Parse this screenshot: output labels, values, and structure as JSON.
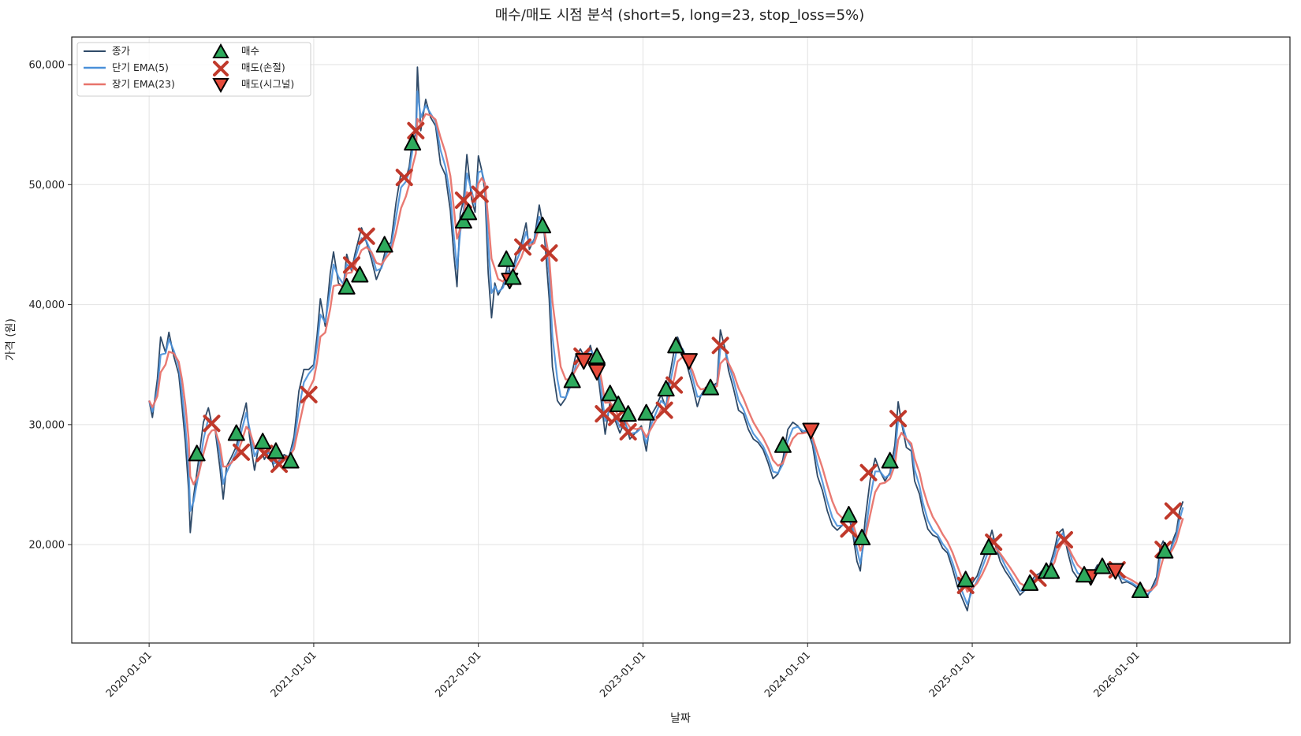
{
  "chart_data": {
    "type": "line",
    "title": "매수/매도 시점 분석 (short=5, long=23, stop_loss=5%)",
    "xlabel": "날짜",
    "ylabel": "가격 (원)",
    "ylim": [
      11800,
      62300
    ],
    "xlim": [
      2019.53,
      2026.93
    ],
    "yticks": [
      20000,
      30000,
      40000,
      50000,
      60000
    ],
    "ytick_labels": [
      "20,000",
      "30,000",
      "40,000",
      "50,000",
      "60,000"
    ],
    "xticks": [
      2020.0,
      2021.0,
      2022.0,
      2023.0,
      2024.0,
      2025.0,
      2026.0
    ],
    "xtick_labels": [
      "2020-01-01",
      "2021-01-01",
      "2022-01-01",
      "2023-01-01",
      "2024-01-01",
      "2025-01-01",
      "2026-01-01"
    ],
    "grid": true,
    "legend_position": "top-left",
    "legend": [
      "종가",
      "단기 EMA(5)",
      "장기 EMA(23)",
      "매수",
      "매도(손절)",
      "매도(시그널)"
    ],
    "colors": {
      "close": "#2f4a68",
      "ema_short": "#4a90d9",
      "ema_long": "#e8736b",
      "buy": "#2eaa5c",
      "sell_stop": "#c0392b",
      "sell_signal": "#e74c3c"
    },
    "close_series": [
      [
        2020.0,
        32000
      ],
      [
        2020.02,
        30600
      ],
      [
        2020.05,
        33800
      ],
      [
        2020.07,
        37300
      ],
      [
        2020.1,
        36000
      ],
      [
        2020.12,
        37700
      ],
      [
        2020.15,
        35700
      ],
      [
        2020.18,
        34200
      ],
      [
        2020.2,
        31500
      ],
      [
        2020.22,
        28500
      ],
      [
        2020.24,
        24600
      ],
      [
        2020.25,
        21000
      ],
      [
        2020.27,
        24000
      ],
      [
        2020.3,
        27000
      ],
      [
        2020.33,
        30200
      ],
      [
        2020.36,
        31400
      ],
      [
        2020.38,
        30100
      ],
      [
        2020.4,
        29700
      ],
      [
        2020.43,
        26400
      ],
      [
        2020.45,
        23800
      ],
      [
        2020.47,
        26500
      ],
      [
        2020.5,
        27300
      ],
      [
        2020.53,
        28200
      ],
      [
        2020.56,
        30200
      ],
      [
        2020.59,
        31800
      ],
      [
        2020.61,
        29000
      ],
      [
        2020.64,
        26200
      ],
      [
        2020.67,
        28500
      ],
      [
        2020.7,
        27100
      ],
      [
        2020.73,
        27800
      ],
      [
        2020.76,
        26300
      ],
      [
        2020.79,
        27000
      ],
      [
        2020.82,
        27500
      ],
      [
        2020.85,
        27300
      ],
      [
        2020.88,
        29000
      ],
      [
        2020.91,
        32800
      ],
      [
        2020.94,
        34600
      ],
      [
        2020.97,
        34600
      ],
      [
        2021.0,
        35000
      ],
      [
        2021.02,
        37400
      ],
      [
        2021.04,
        40500
      ],
      [
        2021.07,
        38200
      ],
      [
        2021.1,
        42600
      ],
      [
        2021.12,
        44400
      ],
      [
        2021.15,
        41800
      ],
      [
        2021.18,
        41400
      ],
      [
        2021.2,
        44200
      ],
      [
        2021.23,
        42800
      ],
      [
        2021.25,
        44200
      ],
      [
        2021.29,
        46400
      ],
      [
        2021.32,
        45200
      ],
      [
        2021.35,
        43800
      ],
      [
        2021.38,
        42100
      ],
      [
        2021.41,
        43100
      ],
      [
        2021.44,
        44800
      ],
      [
        2021.47,
        45200
      ],
      [
        2021.5,
        48500
      ],
      [
        2021.53,
        51000
      ],
      [
        2021.56,
        50500
      ],
      [
        2021.58,
        51500
      ],
      [
        2021.6,
        53800
      ],
      [
        2021.62,
        54200
      ],
      [
        2021.63,
        59800
      ],
      [
        2021.65,
        54500
      ],
      [
        2021.68,
        57100
      ],
      [
        2021.71,
        55600
      ],
      [
        2021.74,
        54900
      ],
      [
        2021.77,
        51700
      ],
      [
        2021.8,
        50800
      ],
      [
        2021.83,
        47800
      ],
      [
        2021.85,
        44300
      ],
      [
        2021.87,
        41500
      ],
      [
        2021.89,
        47600
      ],
      [
        2021.91,
        48700
      ],
      [
        2021.93,
        52500
      ],
      [
        2021.96,
        48700
      ],
      [
        2021.98,
        47700
      ],
      [
        2022.0,
        52400
      ],
      [
        2022.02,
        51200
      ],
      [
        2022.04,
        49500
      ],
      [
        2022.06,
        42600
      ],
      [
        2022.08,
        38900
      ],
      [
        2022.1,
        41800
      ],
      [
        2022.12,
        40800
      ],
      [
        2022.15,
        41600
      ],
      [
        2022.18,
        43500
      ],
      [
        2022.2,
        42200
      ],
      [
        2022.23,
        44200
      ],
      [
        2022.26,
        45100
      ],
      [
        2022.29,
        46800
      ],
      [
        2022.31,
        44600
      ],
      [
        2022.34,
        45500
      ],
      [
        2022.37,
        48300
      ],
      [
        2022.4,
        46000
      ],
      [
        2022.43,
        40500
      ],
      [
        2022.45,
        34800
      ],
      [
        2022.48,
        32000
      ],
      [
        2022.5,
        31600
      ],
      [
        2022.53,
        32200
      ],
      [
        2022.56,
        33700
      ],
      [
        2022.59,
        35700
      ],
      [
        2022.62,
        36300
      ],
      [
        2022.65,
        35500
      ],
      [
        2022.68,
        36600
      ],
      [
        2022.7,
        35600
      ],
      [
        2022.73,
        33800
      ],
      [
        2022.75,
        31500
      ],
      [
        2022.77,
        29200
      ],
      [
        2022.8,
        31900
      ],
      [
        2022.83,
        30400
      ],
      [
        2022.86,
        29300
      ],
      [
        2022.89,
        30300
      ],
      [
        2022.92,
        28800
      ],
      [
        2022.96,
        29400
      ],
      [
        2022.99,
        29900
      ],
      [
        2023.02,
        27800
      ],
      [
        2023.05,
        30800
      ],
      [
        2023.08,
        31500
      ],
      [
        2023.11,
        32500
      ],
      [
        2023.14,
        31400
      ],
      [
        2023.16,
        33900
      ],
      [
        2023.19,
        36200
      ],
      [
        2023.21,
        37300
      ],
      [
        2023.24,
        36200
      ],
      [
        2023.27,
        34800
      ],
      [
        2023.3,
        33300
      ],
      [
        2023.33,
        31500
      ],
      [
        2023.35,
        32400
      ],
      [
        2023.38,
        33100
      ],
      [
        2023.4,
        32700
      ],
      [
        2023.42,
        33200
      ],
      [
        2023.45,
        33500
      ],
      [
        2023.47,
        37900
      ],
      [
        2023.5,
        36200
      ],
      [
        2023.52,
        34500
      ],
      [
        2023.55,
        33000
      ],
      [
        2023.58,
        31200
      ],
      [
        2023.61,
        30900
      ],
      [
        2023.64,
        29600
      ],
      [
        2023.67,
        28800
      ],
      [
        2023.7,
        28500
      ],
      [
        2023.73,
        27900
      ],
      [
        2023.76,
        26800
      ],
      [
        2023.79,
        25500
      ],
      [
        2023.82,
        25900
      ],
      [
        2023.85,
        27100
      ],
      [
        2023.88,
        29600
      ],
      [
        2023.91,
        30200
      ],
      [
        2023.94,
        29900
      ],
      [
        2023.97,
        29300
      ],
      [
        2024.0,
        29500
      ],
      [
        2024.03,
        28300
      ],
      [
        2024.06,
        25700
      ],
      [
        2024.09,
        24500
      ],
      [
        2024.12,
        22800
      ],
      [
        2024.15,
        21600
      ],
      [
        2024.18,
        21200
      ],
      [
        2024.21,
        21600
      ],
      [
        2024.24,
        22800
      ],
      [
        2024.27,
        21300
      ],
      [
        2024.3,
        18600
      ],
      [
        2024.32,
        17800
      ],
      [
        2024.35,
        22100
      ],
      [
        2024.38,
        25400
      ],
      [
        2024.41,
        27200
      ],
      [
        2024.44,
        26100
      ],
      [
        2024.47,
        25300
      ],
      [
        2024.5,
        26000
      ],
      [
        2024.53,
        28300
      ],
      [
        2024.55,
        31900
      ],
      [
        2024.57,
        30200
      ],
      [
        2024.6,
        28100
      ],
      [
        2024.63,
        27800
      ],
      [
        2024.65,
        25300
      ],
      [
        2024.68,
        24200
      ],
      [
        2024.7,
        22800
      ],
      [
        2024.73,
        21300
      ],
      [
        2024.76,
        20800
      ],
      [
        2024.79,
        20600
      ],
      [
        2024.82,
        19700
      ],
      [
        2024.85,
        19300
      ],
      [
        2024.88,
        18000
      ],
      [
        2024.91,
        16500
      ],
      [
        2024.94,
        15500
      ],
      [
        2024.97,
        14500
      ],
      [
        2025.0,
        16800
      ],
      [
        2025.03,
        17400
      ],
      [
        2025.06,
        18600
      ],
      [
        2025.09,
        19700
      ],
      [
        2025.12,
        21200
      ],
      [
        2025.14,
        20000
      ],
      [
        2025.17,
        18600
      ],
      [
        2025.2,
        17800
      ],
      [
        2025.23,
        17200
      ],
      [
        2025.26,
        16500
      ],
      [
        2025.29,
        15800
      ],
      [
        2025.32,
        16200
      ],
      [
        2025.35,
        16700
      ],
      [
        2025.38,
        17400
      ],
      [
        2025.41,
        17600
      ],
      [
        2025.44,
        18100
      ],
      [
        2025.47,
        18200
      ],
      [
        2025.5,
        19600
      ],
      [
        2025.52,
        20900
      ],
      [
        2025.55,
        21300
      ],
      [
        2025.58,
        19400
      ],
      [
        2025.61,
        17800
      ],
      [
        2025.64,
        17200
      ],
      [
        2025.67,
        17300
      ],
      [
        2025.7,
        17000
      ],
      [
        2025.73,
        17500
      ],
      [
        2025.76,
        18300
      ],
      [
        2025.79,
        17900
      ],
      [
        2025.82,
        18000
      ],
      [
        2025.85,
        18400
      ],
      [
        2025.88,
        17700
      ],
      [
        2025.91,
        16800
      ],
      [
        2025.94,
        16900
      ],
      [
        2025.97,
        16700
      ],
      [
        2026.0,
        16400
      ],
      [
        2026.03,
        16000
      ],
      [
        2026.06,
        15600
      ],
      [
        2026.09,
        16400
      ],
      [
        2026.12,
        17300
      ],
      [
        2026.14,
        19700
      ],
      [
        2026.16,
        20300
      ],
      [
        2026.18,
        19600
      ],
      [
        2026.2,
        19300
      ],
      [
        2026.22,
        20400
      ],
      [
        2026.24,
        21100
      ],
      [
        2026.26,
        22800
      ],
      [
        2026.28,
        23600
      ]
    ],
    "buy_points": [
      [
        2020.29,
        27600
      ],
      [
        2020.53,
        29300
      ],
      [
        2020.69,
        28600
      ],
      [
        2020.77,
        27800
      ],
      [
        2020.86,
        27000
      ],
      [
        2021.2,
        41500
      ],
      [
        2021.28,
        42500
      ],
      [
        2021.43,
        45000
      ],
      [
        2021.6,
        53500
      ],
      [
        2021.91,
        47000
      ],
      [
        2021.94,
        47700
      ],
      [
        2022.17,
        43800
      ],
      [
        2022.21,
        42300
      ],
      [
        2022.39,
        46600
      ],
      [
        2022.57,
        33700
      ],
      [
        2022.72,
        35700
      ],
      [
        2022.8,
        32600
      ],
      [
        2022.85,
        31700
      ],
      [
        2022.91,
        30900
      ],
      [
        2023.02,
        31000
      ],
      [
        2023.14,
        33000
      ],
      [
        2023.2,
        36600
      ],
      [
        2023.41,
        33100
      ],
      [
        2023.85,
        28300
      ],
      [
        2024.25,
        22500
      ],
      [
        2024.33,
        20600
      ],
      [
        2024.5,
        27000
      ],
      [
        2024.96,
        17100
      ],
      [
        2025.1,
        19800
      ],
      [
        2025.35,
        16800
      ],
      [
        2025.45,
        17800
      ],
      [
        2025.48,
        17800
      ],
      [
        2025.68,
        17500
      ],
      [
        2025.79,
        18200
      ],
      [
        2026.02,
        16200
      ],
      [
        2026.17,
        19500
      ]
    ],
    "sell_stop_points": [
      [
        2020.38,
        30100
      ],
      [
        2020.56,
        27700
      ],
      [
        2020.7,
        27600
      ],
      [
        2020.79,
        26700
      ],
      [
        2020.97,
        32500
      ],
      [
        2021.23,
        43300
      ],
      [
        2021.32,
        45700
      ],
      [
        2021.55,
        50600
      ],
      [
        2021.62,
        54500
      ],
      [
        2021.91,
        48700
      ],
      [
        2022.01,
        49200
      ],
      [
        2022.27,
        44800
      ],
      [
        2022.43,
        44300
      ],
      [
        2022.63,
        35700
      ],
      [
        2022.76,
        30900
      ],
      [
        2022.84,
        30600
      ],
      [
        2022.91,
        29400
      ],
      [
        2023.13,
        31200
      ],
      [
        2023.19,
        33300
      ],
      [
        2023.47,
        36600
      ],
      [
        2024.25,
        21300
      ],
      [
        2024.37,
        26000
      ],
      [
        2024.55,
        30500
      ],
      [
        2024.96,
        16600
      ],
      [
        2025.13,
        20200
      ],
      [
        2025.4,
        17200
      ],
      [
        2025.56,
        20400
      ],
      [
        2025.88,
        17900
      ],
      [
        2026.16,
        19600
      ],
      [
        2026.22,
        22800
      ]
    ],
    "sell_signal_points": [
      [
        2022.19,
        42000
      ],
      [
        2022.64,
        35300
      ],
      [
        2022.72,
        34400
      ],
      [
        2023.28,
        35300
      ],
      [
        2024.02,
        29500
      ],
      [
        2025.72,
        17300
      ],
      [
        2025.87,
        17800
      ]
    ]
  }
}
